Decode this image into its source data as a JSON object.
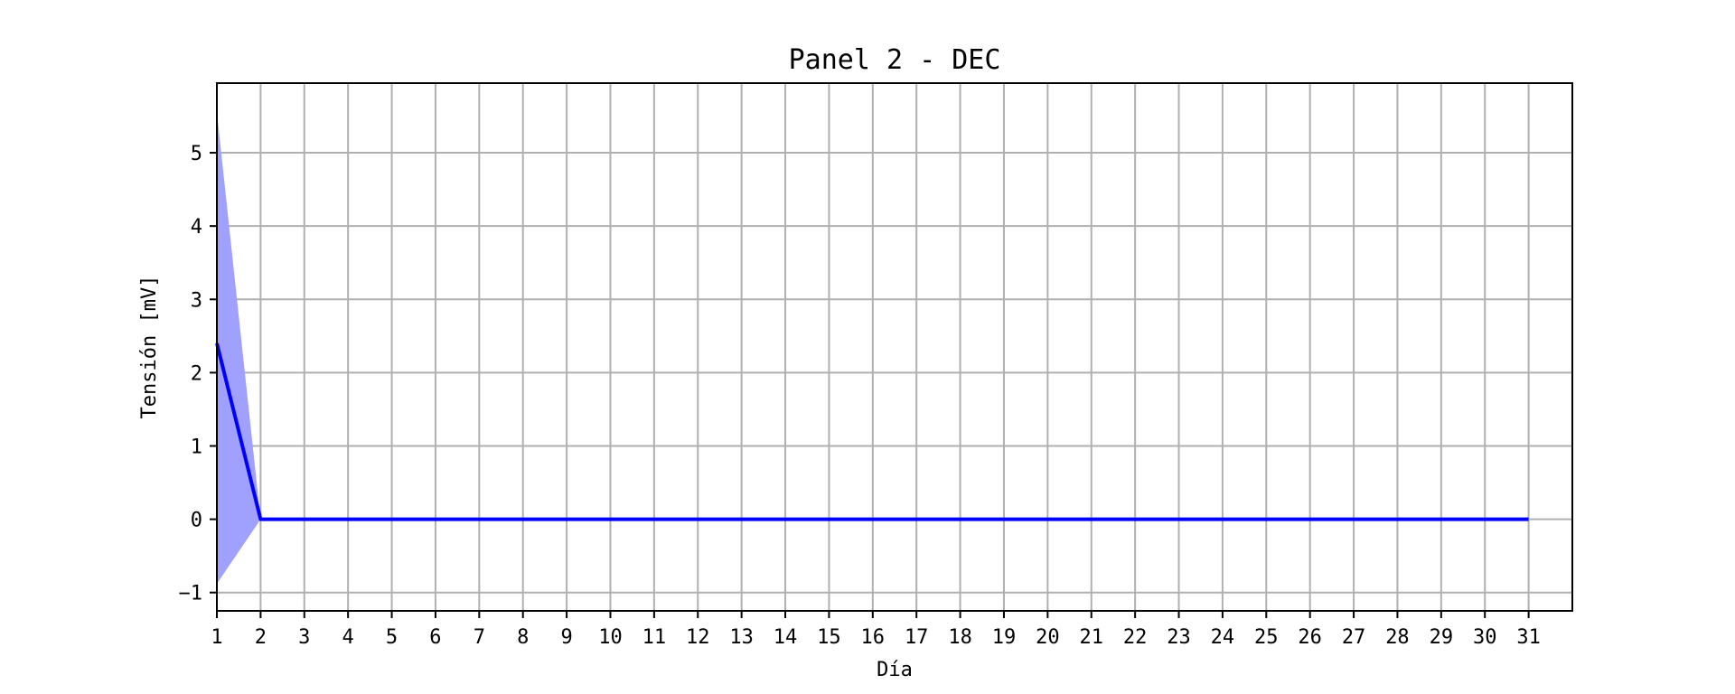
{
  "chart_data": {
    "type": "line",
    "title": "Panel 2 - DEC",
    "xlabel": "Día",
    "ylabel": "Tensión [mV]",
    "xlim": [
      1,
      32
    ],
    "ylim": [
      -1.25,
      5.95
    ],
    "x_ticks": [
      1,
      2,
      3,
      4,
      5,
      6,
      7,
      8,
      9,
      10,
      11,
      12,
      13,
      14,
      15,
      16,
      17,
      18,
      19,
      20,
      21,
      22,
      23,
      24,
      25,
      26,
      27,
      28,
      29,
      30,
      31
    ],
    "y_ticks": [
      -1,
      0,
      1,
      2,
      3,
      4,
      5
    ],
    "y_tick_labels": [
      "−1",
      "0",
      "1",
      "2",
      "3",
      "4",
      "5"
    ],
    "grid": true,
    "series": [
      {
        "color": "#0000ff",
        "x": [
          1,
          2,
          3,
          4,
          5,
          6,
          7,
          8,
          9,
          10,
          11,
          12,
          13,
          14,
          15,
          16,
          17,
          18,
          19,
          20,
          21,
          22,
          23,
          24,
          25,
          26,
          27,
          28,
          29,
          30,
          31
        ],
        "values": [
          2.4,
          0,
          0,
          0,
          0,
          0,
          0,
          0,
          0,
          0,
          0,
          0,
          0,
          0,
          0,
          0,
          0,
          0,
          0,
          0,
          0,
          0,
          0,
          0,
          0,
          0,
          0,
          0,
          0,
          0,
          0
        ],
        "band_upper": [
          5.55,
          0,
          0,
          0,
          0,
          0,
          0,
          0,
          0,
          0,
          0,
          0,
          0,
          0,
          0,
          0,
          0,
          0,
          0,
          0,
          0,
          0,
          0,
          0,
          0,
          0,
          0,
          0,
          0,
          0,
          0
        ],
        "band_lower": [
          -0.88,
          0,
          0,
          0,
          0,
          0,
          0,
          0,
          0,
          0,
          0,
          0,
          0,
          0,
          0,
          0,
          0,
          0,
          0,
          0,
          0,
          0,
          0,
          0,
          0,
          0,
          0,
          0,
          0,
          0,
          0
        ],
        "band_color": "#a0a0ff"
      }
    ]
  }
}
